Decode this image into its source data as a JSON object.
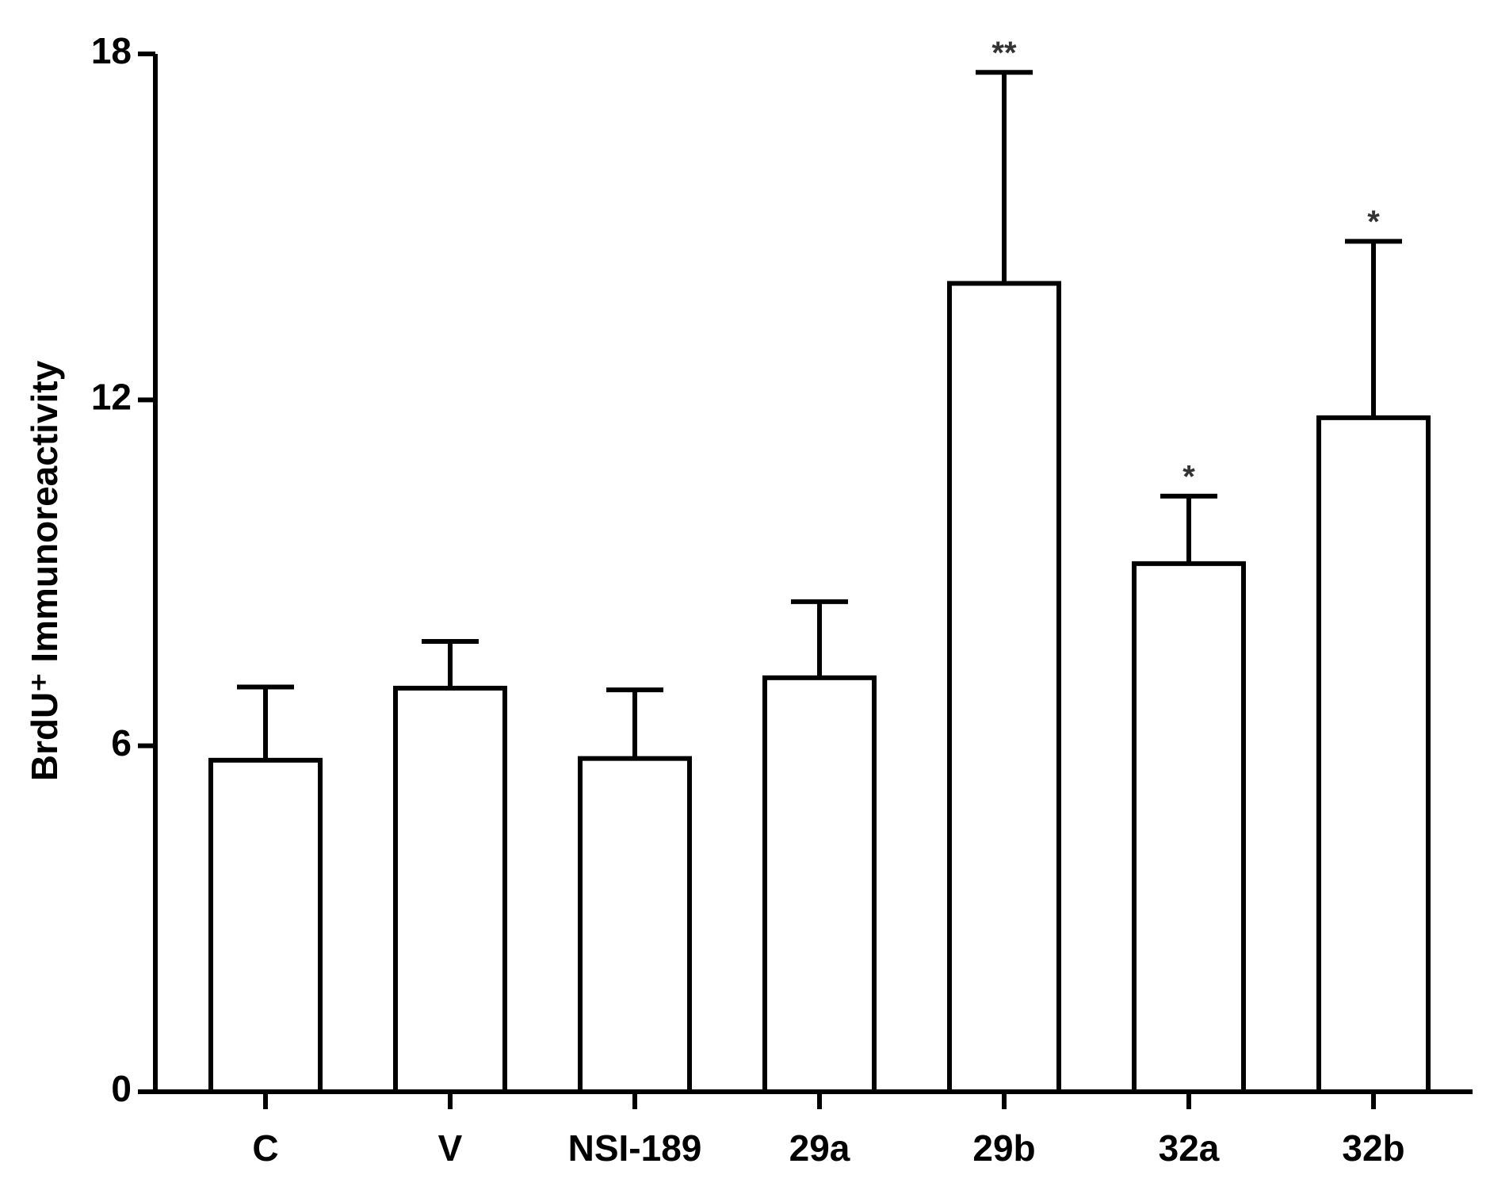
{
  "chart_data": {
    "type": "bar",
    "y_label": "BrdU⁺ Immunoreactivity",
    "categories": [
      "C",
      "V",
      "NSI-189",
      "29a",
      "29b",
      "32a",
      "32b"
    ],
    "values": [
      5.75,
      7.0,
      5.78,
      7.18,
      14.02,
      9.16,
      11.69
    ],
    "errors": [
      1.27,
      0.81,
      1.19,
      1.32,
      3.66,
      1.17,
      3.06
    ],
    "annotations": [
      null,
      null,
      null,
      null,
      "**",
      "*",
      "*"
    ],
    "color": "#ffffff",
    "edge_color": "#000000",
    "ylim": [
      0,
      18
    ],
    "yticks": [
      0,
      6,
      12,
      18
    ],
    "grid": false
  }
}
